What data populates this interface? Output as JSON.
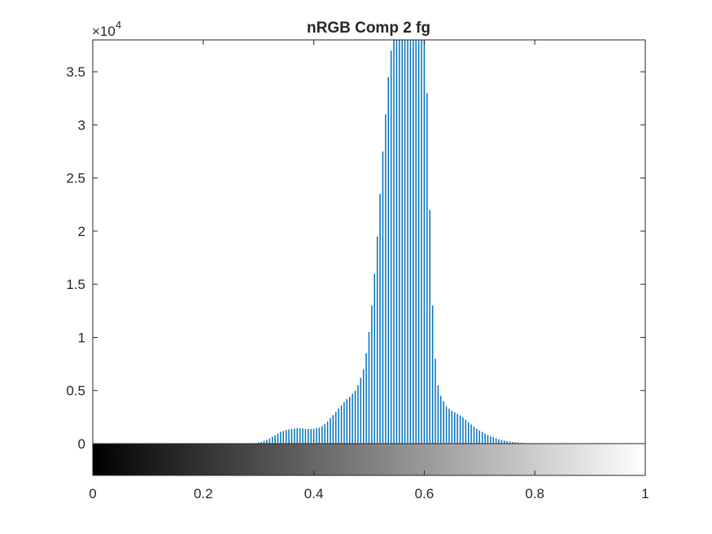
{
  "chart_data": {
    "type": "bar",
    "title": "nRGB Comp 2 fg",
    "xlabel": "",
    "ylabel": "",
    "y_exponent_label": "×10",
    "y_exponent_power": "4",
    "xlim": [
      0,
      1
    ],
    "ylim": [
      0,
      38000
    ],
    "x_ticks": [
      0,
      0.2,
      0.4,
      0.6,
      0.8,
      1
    ],
    "x_tick_labels": [
      "0",
      "0.2",
      "0.4",
      "0.6",
      "0.8",
      "1"
    ],
    "y_ticks": [
      0,
      5000,
      10000,
      15000,
      20000,
      25000,
      30000,
      35000
    ],
    "y_tick_labels": [
      "0",
      "0.5",
      "1",
      "1.5",
      "2",
      "2.5",
      "3",
      "3.5"
    ],
    "grid": false,
    "bar_color": "#0072BD",
    "colorbar": {
      "colormap": "gray",
      "range": [
        0,
        1
      ],
      "position": "bottom"
    },
    "x": [
      0.3,
      0.305,
      0.31,
      0.315,
      0.32,
      0.325,
      0.33,
      0.335,
      0.34,
      0.345,
      0.35,
      0.355,
      0.36,
      0.365,
      0.37,
      0.375,
      0.38,
      0.385,
      0.39,
      0.395,
      0.4,
      0.405,
      0.41,
      0.415,
      0.42,
      0.425,
      0.43,
      0.435,
      0.44,
      0.445,
      0.45,
      0.455,
      0.46,
      0.465,
      0.47,
      0.475,
      0.48,
      0.485,
      0.49,
      0.495,
      0.5,
      0.505,
      0.51,
      0.515,
      0.52,
      0.525,
      0.53,
      0.535,
      0.54,
      0.545,
      0.55,
      0.555,
      0.56,
      0.565,
      0.57,
      0.575,
      0.58,
      0.585,
      0.59,
      0.595,
      0.6,
      0.605,
      0.61,
      0.615,
      0.62,
      0.625,
      0.63,
      0.635,
      0.64,
      0.645,
      0.65,
      0.655,
      0.66,
      0.665,
      0.67,
      0.675,
      0.68,
      0.685,
      0.69,
      0.695,
      0.7,
      0.705,
      0.71,
      0.715,
      0.72,
      0.725,
      0.73,
      0.735,
      0.74,
      0.745,
      0.75,
      0.755,
      0.76,
      0.765,
      0.77,
      0.775,
      0.78,
      0.785,
      0.79,
      0.795,
      0.8
    ],
    "values": [
      100,
      150,
      250,
      350,
      500,
      650,
      800,
      950,
      1100,
      1200,
      1300,
      1350,
      1400,
      1420,
      1450,
      1450,
      1430,
      1400,
      1380,
      1380,
      1400,
      1450,
      1500,
      1650,
      1850,
      2100,
      2400,
      2700,
      3000,
      3300,
      3600,
      3900,
      4200,
      4400,
      4700,
      5000,
      5500,
      6200,
      7000,
      8500,
      10500,
      13000,
      16000,
      19500,
      23500,
      27500,
      31000,
      34500,
      37000,
      38500,
      39500,
      40000,
      40000,
      40000,
      40000,
      40000,
      40000,
      40000,
      40000,
      40000,
      39000,
      33000,
      22000,
      13000,
      8000,
      5500,
      4500,
      4000,
      3500,
      3300,
      3100,
      2950,
      2800,
      2650,
      2450,
      2250,
      2000,
      1800,
      1600,
      1400,
      1250,
      1100,
      950,
      820,
      700,
      600,
      500,
      420,
      350,
      290,
      240,
      200,
      160,
      130,
      100,
      80,
      60,
      45,
      35,
      25,
      20
    ]
  }
}
